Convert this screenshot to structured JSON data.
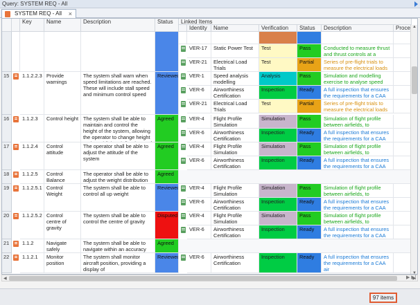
{
  "query_title": "Query: SYSTEM REQ - All",
  "tab": {
    "label": "SYSTEM REQ - All",
    "close": "×"
  },
  "columns": {
    "key": "Key",
    "name": "Name",
    "description": "Description",
    "status": "Status",
    "linked_items": "Linked Items",
    "identity": "Identity",
    "lname": "Name",
    "verification": "Verification",
    "lstatus": "Status",
    "ldescription": "Description",
    "procedure": "Proced"
  },
  "status_colors": {
    "Reviewed": "#4a86e8",
    "Agreed": "#22cc22",
    "Disputed": "#ee1111",
    "none": "#4a86e8"
  },
  "verification_colors": {
    "Test": "#fff9c4",
    "Analysis": "#00c9c9",
    "Inspection": "#00cc44",
    "Simulation": "#c8b5cc"
  },
  "lstatus_colors": {
    "Pass": "#22cc22",
    "Partial": "#e8a317",
    "Ready": "#2f7de1"
  },
  "rows": [
    {
      "num": "",
      "key": "",
      "name": "",
      "desc": "",
      "status": "",
      "links": [
        {
          "id": "",
          "name": "",
          "ver": "",
          "st": "",
          "desc": ""
        },
        {
          "id": "VER-17",
          "name": "Static Power Test",
          "ver": "Test",
          "st": "Pass",
          "desc": "Conducted to measure thrust and thrust controls at a system"
        },
        {
          "id": "VER-21",
          "name": "Electrical Load Trials",
          "ver": "Test",
          "st": "Partial",
          "desc": "Series of pre-flight trials to measure the electrical loads"
        }
      ]
    },
    {
      "num": "15",
      "key": "1.1.2.2.3",
      "name": "Provide warnings",
      "desc": "The system shall warn when speed limitations are reached. These will include stall speed and minimum control speed",
      "status": "Reviewed",
      "links": [
        {
          "id": "VER-1",
          "name": "Speed analysis modelling",
          "ver": "Analysis",
          "st": "Pass",
          "desc": "Simulation and modelling exercise to analyse speed profile"
        },
        {
          "id": "VER-6",
          "name": "Airworthiness Certification",
          "ver": "Inspection",
          "st": "Ready",
          "desc": "A full inspection that ensures the requirements for a CAA air"
        },
        {
          "id": "VER-21",
          "name": "Electrical Load Trials",
          "ver": "Test",
          "st": "Partial",
          "desc": "Series of pre-flight trials to measure the electrical loads"
        }
      ]
    },
    {
      "num": "16",
      "key": "1.1.2.3",
      "name": "Control height",
      "desc": "The system shall be able to maintain and control the height of the system, allowing the operator to change height and establish a defined rate of",
      "status": "Agreed",
      "links": [
        {
          "id": "VER-4",
          "name": "Flight Profile Simulation",
          "ver": "Simulation",
          "st": "Pass",
          "desc": "Simulation of flight profile between airfields, to"
        },
        {
          "id": "VER-6",
          "name": "Airworthiness Certification",
          "ver": "Inspection",
          "st": "Ready",
          "desc": "A full inspection that ensures the requirements for a CAA air"
        }
      ]
    },
    {
      "num": "17",
      "key": "1.1.2.4",
      "name": "Control attitude",
      "desc": "The operator shall be able to adjust the attitude of the system",
      "status": "Agreed",
      "links": [
        {
          "id": "VER-4",
          "name": "Flight Profile Simulation",
          "ver": "Simulation",
          "st": "Pass",
          "desc": "Simulation of flight profile between airfields, to"
        },
        {
          "id": "VER-6",
          "name": "Airworthiness Certification",
          "ver": "Inspection",
          "st": "Ready",
          "desc": "A full inspection that ensures the requirements for a CAA air"
        }
      ]
    },
    {
      "num": "18",
      "key": "1.1.2.5",
      "name": "Control Balance",
      "desc": "The operator shall be able to adjust the weight distribution of the aircraft, to compensate for",
      "status": "Agreed",
      "links": []
    },
    {
      "num": "19",
      "key": "1.1.2.5.1",
      "name": "Control Weight",
      "desc": "The system shall be able to control all up weight",
      "status": "Reviewed",
      "links": [
        {
          "id": "VER-4",
          "name": "Flight Profile Simulation",
          "ver": "Simulation",
          "st": "Pass",
          "desc": "Simulation of flight profile between airfields, to"
        },
        {
          "id": "VER-6",
          "name": "Airworthiness Certification",
          "ver": "Inspection",
          "st": "Ready",
          "desc": "A full inspection that ensures the requirements for a CAA air"
        }
      ]
    },
    {
      "num": "20",
      "key": "1.1.2.5.2",
      "name": "Control centre of gravity",
      "desc": "The system shall be able to control the centre of gravity",
      "status": "Disputed",
      "links": [
        {
          "id": "VER-4",
          "name": "Flight Profile Simulation",
          "ver": "Simulation",
          "st": "Pass",
          "desc": "Simulation of flight profile between airfields, to"
        },
        {
          "id": "VER-6",
          "name": "Airworthiness Certification",
          "ver": "Inspection",
          "st": "Ready",
          "desc": "A full inspection that ensures the requirements for a CAA air"
        }
      ]
    },
    {
      "num": "21",
      "key": "1.1.2",
      "name": "Navigate safely",
      "desc": "The system shall be able to navigate within an accuracy defined by regulations and",
      "status": "Agreed",
      "links": []
    },
    {
      "num": "22",
      "key": "1.1.2.1",
      "name": "Monitor position",
      "desc": "The system shall monitor aircraft position, providing a display of",
      "status": "Reviewed",
      "links": [
        {
          "id": "VER-6",
          "name": "Airworthiness Certification",
          "ver": "Inspection",
          "st": "Ready",
          "desc": "A full inspection that ensures the requirements for a CAA air"
        }
      ]
    }
  ],
  "item_count": "97 items"
}
